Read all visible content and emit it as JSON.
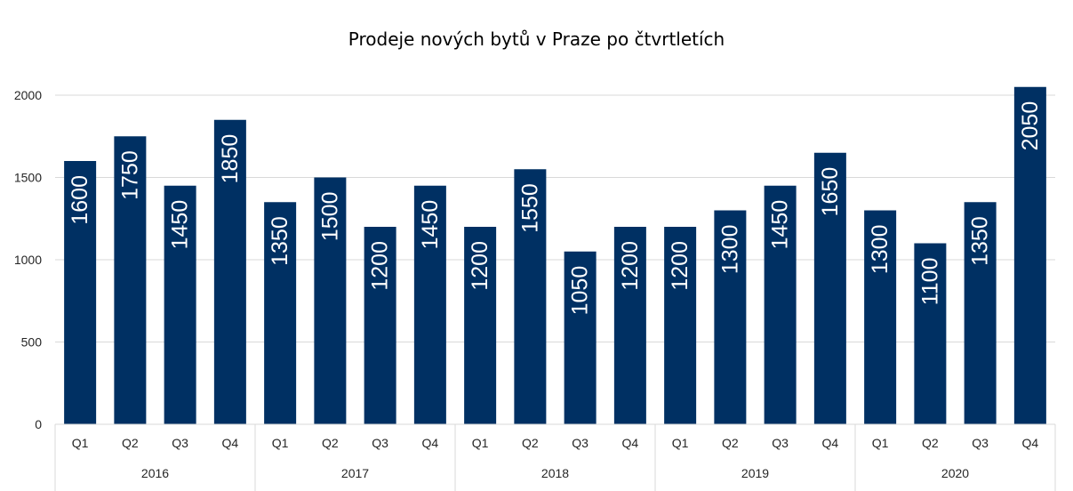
{
  "chart_data": {
    "type": "bar",
    "title": "Prodeje nových bytů v Praze po čtvrtletích",
    "groups": [
      "2016",
      "2017",
      "2018",
      "2019",
      "2020"
    ],
    "quarters": [
      "Q1",
      "Q2",
      "Q3",
      "Q4"
    ],
    "categories": [
      "2016 Q1",
      "2016 Q2",
      "2016 Q3",
      "2016 Q4",
      "2017 Q1",
      "2017 Q2",
      "2017 Q3",
      "2017 Q4",
      "2018 Q1",
      "2018 Q2",
      "2018 Q3",
      "2018 Q4",
      "2019 Q1",
      "2019 Q2",
      "2019 Q3",
      "2019 Q4",
      "2020 Q1",
      "2020 Q2",
      "2020 Q3",
      "2020 Q4"
    ],
    "values": [
      1600,
      1750,
      1450,
      1850,
      1350,
      1500,
      1200,
      1450,
      1200,
      1550,
      1050,
      1200,
      1200,
      1300,
      1450,
      1650,
      1300,
      1100,
      1350,
      2050
    ],
    "y_ticks": [
      "0",
      "500",
      "1000",
      "1500",
      "2000"
    ],
    "ylim": [
      0,
      2000
    ],
    "grid": true,
    "bar_color": "#003063",
    "label_color": "#ffffff",
    "grid_color": "#d9d9d9"
  }
}
